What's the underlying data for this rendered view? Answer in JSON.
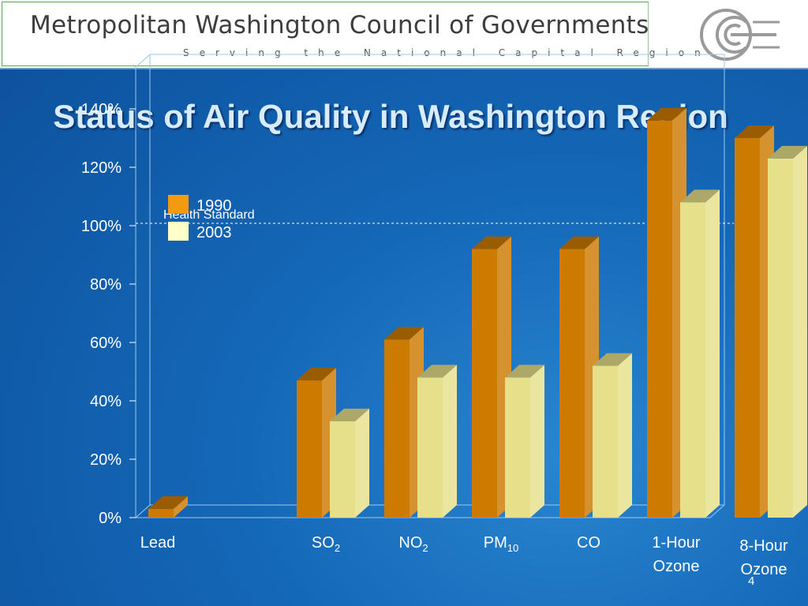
{
  "header": {
    "org_name": "Metropolitan Washington Council of Governments",
    "tagline": "Serving the National Capital Region"
  },
  "slide": {
    "title": "Status of Air Quality in Washington Region",
    "page_number": "4"
  },
  "chart_data": {
    "type": "bar",
    "title": "Status of Air Quality in Washington Region",
    "categories": [
      {
        "parts": [
          {
            "t": "Lead"
          }
        ]
      },
      {
        "parts": [
          {
            "t": "SO"
          },
          {
            "t": "2",
            "sub": true
          }
        ]
      },
      {
        "parts": [
          {
            "t": "NO"
          },
          {
            "t": "2",
            "sub": true
          }
        ]
      },
      {
        "parts": [
          {
            "t": "PM"
          },
          {
            "t": "10",
            "sub": true
          }
        ]
      },
      {
        "parts": [
          {
            "t": "CO"
          }
        ]
      },
      {
        "lines": [
          "1-Hour",
          "Ozone"
        ]
      },
      {
        "lines": [
          "8-Hour",
          "Ozone"
        ]
      }
    ],
    "series": [
      {
        "name": "1990",
        "color": "#cc7a00",
        "values": [
          3,
          47,
          61,
          92,
          92,
          136,
          130
        ]
      },
      {
        "name": "2003",
        "color": "#e6e08a",
        "values": [
          0,
          33,
          48,
          48,
          52,
          108,
          123
        ]
      }
    ],
    "y_ticks": [
      "0%",
      "20%",
      "40%",
      "60%",
      "80%",
      "100%",
      "120%",
      "140%"
    ],
    "y_tick_values": [
      0,
      20,
      40,
      60,
      80,
      100,
      120,
      140
    ],
    "ylim": [
      0,
      150
    ],
    "reference_line": {
      "value": 100,
      "label": "Health Standard"
    },
    "legend_position": "top-left",
    "grid": false
  }
}
